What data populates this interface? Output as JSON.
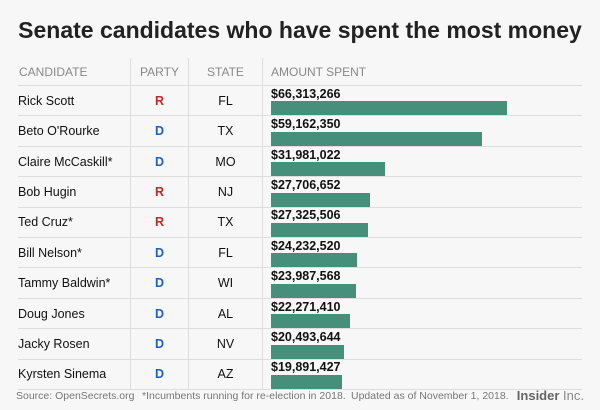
{
  "chart_data": {
    "type": "table",
    "title": "Senate candidates who have spent the most money",
    "columns": [
      "CANDIDATE",
      "PARTY",
      "STATE",
      "AMOUNT SPENT"
    ],
    "rows": [
      {
        "candidate": "Rick Scott",
        "party": "R",
        "state": "FL",
        "amount_label": "$66,313,266",
        "amount": 66313266
      },
      {
        "candidate": "Beto O'Rourke",
        "party": "D",
        "state": "TX",
        "amount_label": "$59,162,350",
        "amount": 59162350
      },
      {
        "candidate": "Claire McCaskill*",
        "party": "D",
        "state": "MO",
        "amount_label": "$31,981,022",
        "amount": 31981022
      },
      {
        "candidate": "Bob Hugin",
        "party": "R",
        "state": "NJ",
        "amount_label": "$27,706,652",
        "amount": 27706652
      },
      {
        "candidate": "Ted Cruz*",
        "party": "R",
        "state": "TX",
        "amount_label": "$27,325,506",
        "amount": 27325506
      },
      {
        "candidate": "Bill Nelson*",
        "party": "D",
        "state": "FL",
        "amount_label": "$24,232,520",
        "amount": 24232520
      },
      {
        "candidate": "Tammy Baldwin*",
        "party": "D",
        "state": "WI",
        "amount_label": "$23,987,568",
        "amount": 23987568
      },
      {
        "candidate": "Doug Jones",
        "party": "D",
        "state": "AL",
        "amount_label": "$22,271,410",
        "amount": 22271410
      },
      {
        "candidate": "Jacky Rosen",
        "party": "D",
        "state": "NV",
        "amount_label": "$20,493,644",
        "amount": 20493644
      },
      {
        "candidate": "Kyrsten Sinema",
        "party": "D",
        "state": "AZ",
        "amount_label": "$19,891,427",
        "amount": 19891427
      }
    ],
    "bar_color": "#468f7a",
    "party_colors": {
      "R": "#c0282d",
      "D": "#1f5fbf"
    }
  },
  "footer": {
    "source": "Source: OpenSecrets.org",
    "note": "*Incumbents running for re-election in 2018.",
    "updated": "Updated as of November 1, 2018.",
    "logo_bold": "Insider",
    "logo_light": "Inc."
  }
}
